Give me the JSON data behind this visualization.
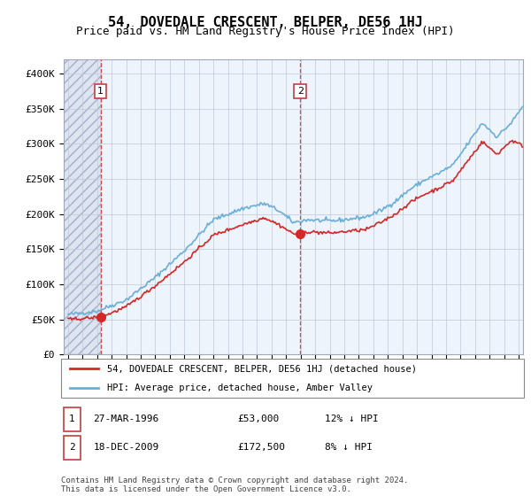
{
  "title": "54, DOVEDALE CRESCENT, BELPER, DE56 1HJ",
  "subtitle": "Price paid vs. HM Land Registry's House Price Index (HPI)",
  "ylabel_ticks": [
    "£0",
    "£50K",
    "£100K",
    "£150K",
    "£200K",
    "£250K",
    "£300K",
    "£350K",
    "£400K"
  ],
  "ytick_values": [
    0,
    50000,
    100000,
    150000,
    200000,
    250000,
    300000,
    350000,
    400000
  ],
  "ylim": [
    0,
    420000
  ],
  "xmin": 1994,
  "xmax": 2025,
  "sale1_year": 1996.23,
  "sale1_price": 53000,
  "sale2_year": 2009.97,
  "sale2_price": 172500,
  "hpi_color": "#6baed6",
  "price_color": "#d62728",
  "annotation1_label": "1",
  "annotation2_label": "2",
  "legend_line1": "54, DOVEDALE CRESCENT, BELPER, DE56 1HJ (detached house)",
  "legend_line2": "HPI: Average price, detached house, Amber Valley",
  "table_row1": [
    "1",
    "27-MAR-1996",
    "£53,000",
    "12% ↓ HPI"
  ],
  "table_row2": [
    "2",
    "18-DEC-2009",
    "£172,500",
    "8% ↓ HPI"
  ],
  "footer": "Contains HM Land Registry data © Crown copyright and database right 2024.\nThis data is licensed under the Open Government Licence v3.0.",
  "grid_color": "#c0c8d8",
  "title_fontsize": 11,
  "subtitle_fontsize": 9,
  "hpi_key_years": [
    1994,
    1996,
    1998,
    2000,
    2002,
    2004,
    2006,
    2007.5,
    2008.5,
    2009.5,
    2010.5,
    2012,
    2013,
    2014.5,
    2015.5,
    2016.5,
    2017.5,
    2018.5,
    2019.5,
    2020.5,
    2021.5,
    2022.5,
    2023.5,
    2024.5,
    2025.5
  ],
  "hpi_key_vals": [
    57000,
    62000,
    78000,
    110000,
    148000,
    192000,
    208000,
    215000,
    205000,
    188000,
    192000,
    190000,
    192000,
    196000,
    205000,
    218000,
    235000,
    248000,
    258000,
    270000,
    300000,
    330000,
    310000,
    330000,
    360000
  ],
  "price_key_years": [
    1994,
    1996,
    1996.23,
    1998,
    2000,
    2002,
    2004,
    2006,
    2007.5,
    2008.5,
    2009.5,
    2009.97,
    2010.5,
    2012,
    2013,
    2014.5,
    2015.5,
    2016.5,
    2017.5,
    2018.5,
    2019.5,
    2020.5,
    2021.5,
    2022.5,
    2023.5,
    2024.5,
    2025.5
  ],
  "price_key_vals": [
    50000,
    53000,
    53000,
    68000,
    98000,
    132000,
    170000,
    185000,
    195000,
    185000,
    172000,
    172500,
    175000,
    173000,
    175000,
    178000,
    188000,
    200000,
    216000,
    228000,
    237000,
    248000,
    276000,
    303000,
    285000,
    305000,
    295000
  ],
  "n_points": 372
}
